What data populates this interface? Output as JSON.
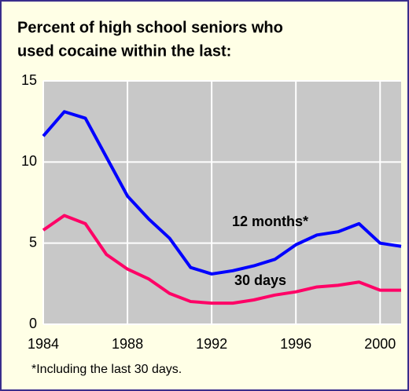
{
  "chart_data": {
    "type": "line",
    "title": [
      "Percent of high school seniors who",
      "used cocaine within the last:"
    ],
    "x": [
      1984,
      1985,
      1986,
      1987,
      1988,
      1989,
      1990,
      1991,
      1992,
      1993,
      1994,
      1995,
      1996,
      1997,
      1998,
      1999,
      2000,
      2001
    ],
    "series": [
      {
        "name": "12 months*",
        "color": "#0000ff",
        "values": [
          11.6,
          13.1,
          12.7,
          10.3,
          7.9,
          6.5,
          5.3,
          3.5,
          3.1,
          3.3,
          3.6,
          4.0,
          4.9,
          5.5,
          5.7,
          6.2,
          5.0,
          4.8
        ]
      },
      {
        "name": "30 days",
        "color": "#ff0066",
        "values": [
          5.8,
          6.7,
          6.2,
          4.3,
          3.4,
          2.8,
          1.9,
          1.4,
          1.3,
          1.3,
          1.5,
          1.8,
          2.0,
          2.3,
          2.4,
          2.6,
          2.1,
          2.1
        ]
      }
    ],
    "xlim": [
      1984,
      2001
    ],
    "xticks": [
      1984,
      1988,
      1992,
      1996,
      2000
    ],
    "ylim": [
      0,
      15
    ],
    "yticks": [
      0,
      5,
      10,
      15
    ],
    "grid": true,
    "footnote": "*Including the last 30 days."
  }
}
